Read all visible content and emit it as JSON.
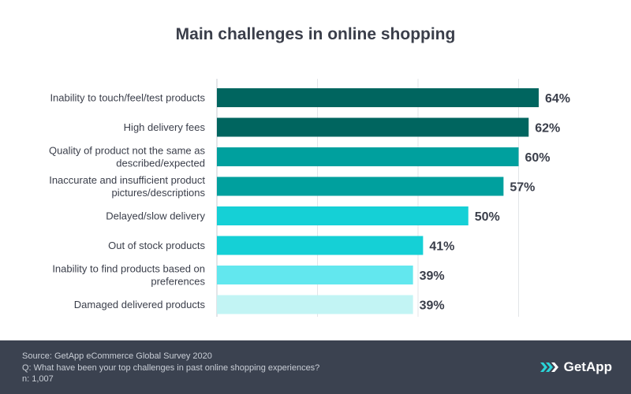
{
  "chart_data": {
    "type": "bar",
    "orientation": "horizontal",
    "title": "Main challenges in online shopping",
    "categories": [
      [
        "Inability to touch/feel/test products"
      ],
      [
        "High delivery fees"
      ],
      [
        "Quality of product not the same as",
        "described/expected"
      ],
      [
        "Inaccurate and insufficient product",
        "pictures/descriptions"
      ],
      [
        "Delayed/slow delivery"
      ],
      [
        "Out of stock products"
      ],
      [
        "Inability to find products based on",
        "preferences"
      ],
      [
        "Damaged delivered products"
      ]
    ],
    "values": [
      64,
      62,
      60,
      57,
      50,
      41,
      39,
      39
    ],
    "value_labels": [
      "64%",
      "62%",
      "60%",
      "57%",
      "50%",
      "41%",
      "39%",
      "39%"
    ],
    "colors": [
      "#00655f",
      "#00655f",
      "#00a09e",
      "#00a09e",
      "#15d0d6",
      "#15d0d6",
      "#62e7ee",
      "#c2f4f4"
    ],
    "xlim": [
      0,
      80
    ],
    "grid": true,
    "xlabel": "",
    "ylabel": ""
  },
  "footer": {
    "source": "Source: GetApp eCommerce Global Survey 2020",
    "question": "Q: What have been your top challenges in past online shopping experiences?",
    "sample": "n: 1,007",
    "brand": "GetApp",
    "logo_icon": "getapp-chevrons-icon",
    "background": "#3b4250"
  }
}
